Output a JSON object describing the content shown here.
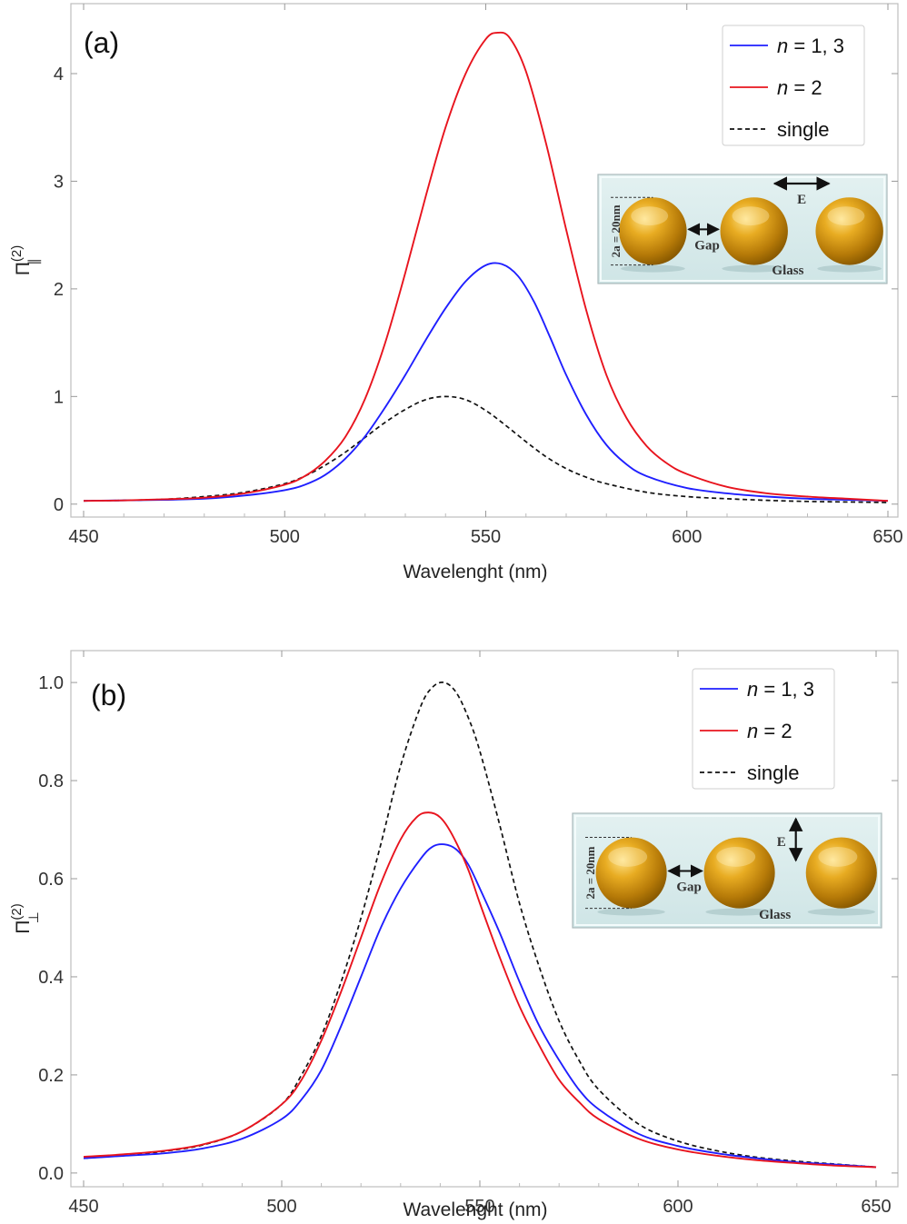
{
  "colors": {
    "series_blue": "#1f1fff",
    "series_red": "#e8141e",
    "series_black": "#111111",
    "frame": "#bdbdbd",
    "inset_bg": "#d9ecec",
    "sphere": "#e0a516"
  },
  "chart_data": [
    {
      "type": "line",
      "panel_label": "(a)",
      "ylabel": "Π",
      "ylabel_sup": "(2)",
      "ylabel_sub": "∥",
      "xlabel": "Wavelenght (nm)",
      "xlim": [
        450,
        650
      ],
      "ylim": [
        -0.12,
        4.65
      ],
      "x_ticks": [
        450,
        500,
        550,
        600,
        650
      ],
      "y_ticks": [
        0,
        1,
        2,
        3,
        4
      ],
      "y_tick_labels": [
        "0",
        "1",
        "2",
        "3",
        "4"
      ],
      "legend_position": "top-right",
      "legend": [
        {
          "label_italic": "n",
          "label_rest": " = 1, 3",
          "style": "solid",
          "color": "#1f1fff"
        },
        {
          "label_italic": "n",
          "label_rest": " = 2",
          "style": "solid",
          "color": "#e8141e"
        },
        {
          "label_italic": "",
          "label_rest": "single",
          "style": "dashed",
          "color": "#111111"
        }
      ],
      "inset": {
        "diameter_label": "2a = 20nm",
        "gap_label": "Gap",
        "field_label": "E",
        "substrate_label": "Glass",
        "field_direction": "horizontal"
      },
      "series": [
        {
          "name": "n = 1, 3",
          "color": "#1f1fff",
          "dash": false,
          "x": [
            450,
            460,
            470,
            480,
            490,
            500,
            505,
            510,
            515,
            520,
            525,
            530,
            535,
            540,
            545,
            550,
            554,
            558,
            562,
            566,
            570,
            575,
            580,
            585,
            590,
            600,
            610,
            620,
            630,
            640,
            650
          ],
          "y": [
            0.03,
            0.035,
            0.04,
            0.05,
            0.08,
            0.13,
            0.18,
            0.27,
            0.42,
            0.63,
            0.9,
            1.2,
            1.52,
            1.82,
            2.07,
            2.22,
            2.23,
            2.12,
            1.88,
            1.55,
            1.2,
            0.83,
            0.55,
            0.37,
            0.26,
            0.15,
            0.1,
            0.07,
            0.05,
            0.04,
            0.03
          ]
        },
        {
          "name": "n = 2",
          "color": "#e8141e",
          "dash": false,
          "x": [
            450,
            460,
            470,
            480,
            490,
            500,
            505,
            510,
            515,
            520,
            525,
            530,
            535,
            540,
            545,
            550,
            553,
            556,
            560,
            565,
            570,
            575,
            580,
            585,
            590,
            595,
            600,
            610,
            620,
            630,
            640,
            650
          ],
          "y": [
            0.03,
            0.035,
            0.045,
            0.06,
            0.1,
            0.18,
            0.26,
            0.4,
            0.62,
            0.98,
            1.5,
            2.15,
            2.85,
            3.5,
            4.0,
            4.32,
            4.38,
            4.33,
            4.02,
            3.35,
            2.55,
            1.8,
            1.2,
            0.8,
            0.54,
            0.38,
            0.28,
            0.16,
            0.1,
            0.07,
            0.05,
            0.03
          ]
        },
        {
          "name": "single",
          "color": "#111111",
          "dash": true,
          "x": [
            450,
            460,
            470,
            480,
            490,
            500,
            505,
            510,
            515,
            520,
            525,
            530,
            535,
            540,
            545,
            550,
            555,
            560,
            565,
            570,
            575,
            580,
            590,
            600,
            610,
            620,
            630,
            640,
            650
          ],
          "y": [
            0.03,
            0.035,
            0.045,
            0.07,
            0.11,
            0.19,
            0.26,
            0.36,
            0.48,
            0.62,
            0.76,
            0.88,
            0.97,
            1.0,
            0.97,
            0.87,
            0.73,
            0.58,
            0.44,
            0.33,
            0.25,
            0.19,
            0.11,
            0.07,
            0.05,
            0.035,
            0.025,
            0.02,
            0.015
          ]
        }
      ]
    },
    {
      "type": "line",
      "panel_label": "(b)",
      "ylabel": "Π",
      "ylabel_sup": "(2)",
      "ylabel_sub": "⊥",
      "xlabel": "Wavelenght (nm)",
      "xlim": [
        450,
        650
      ],
      "ylim": [
        -0.028,
        1.065
      ],
      "x_ticks": [
        450,
        500,
        550,
        600,
        650
      ],
      "y_ticks": [
        0,
        0.2,
        0.4,
        0.6,
        0.8,
        1.0
      ],
      "y_tick_labels": [
        "0.0",
        "0.2",
        "0.4",
        "0.6",
        "0.8",
        "1.0"
      ],
      "legend_position": "top-right",
      "legend": [
        {
          "label_italic": "n",
          "label_rest": " = 1, 3",
          "style": "solid",
          "color": "#1f1fff"
        },
        {
          "label_italic": "n",
          "label_rest": " = 2",
          "style": "solid",
          "color": "#e8141e"
        },
        {
          "label_italic": "",
          "label_rest": "single",
          "style": "dashed",
          "color": "#111111"
        }
      ],
      "inset": {
        "diameter_label": "2a = 20nm",
        "gap_label": "Gap",
        "field_label": "E",
        "substrate_label": "Glass",
        "field_direction": "vertical"
      },
      "series": [
        {
          "name": "n = 1, 3",
          "color": "#1f1fff",
          "dash": false,
          "x": [
            450,
            460,
            470,
            480,
            490,
            500,
            505,
            510,
            515,
            520,
            525,
            530,
            535,
            538,
            541,
            544,
            547,
            550,
            555,
            560,
            565,
            570,
            575,
            580,
            590,
            600,
            610,
            620,
            630,
            640,
            650
          ],
          "y": [
            0.03,
            0.035,
            0.04,
            0.05,
            0.07,
            0.11,
            0.15,
            0.21,
            0.3,
            0.4,
            0.5,
            0.58,
            0.64,
            0.665,
            0.67,
            0.66,
            0.63,
            0.58,
            0.49,
            0.39,
            0.3,
            0.23,
            0.17,
            0.13,
            0.08,
            0.055,
            0.04,
            0.03,
            0.022,
            0.017,
            0.012
          ]
        },
        {
          "name": "n = 2",
          "color": "#e8141e",
          "dash": false,
          "x": [
            450,
            460,
            470,
            480,
            490,
            500,
            505,
            510,
            515,
            520,
            525,
            530,
            534,
            537,
            540,
            543,
            547,
            550,
            555,
            560,
            565,
            570,
            575,
            580,
            590,
            600,
            610,
            620,
            630,
            640,
            650
          ],
          "y": [
            0.033,
            0.038,
            0.045,
            0.058,
            0.085,
            0.14,
            0.19,
            0.27,
            0.37,
            0.48,
            0.59,
            0.68,
            0.725,
            0.735,
            0.725,
            0.69,
            0.62,
            0.55,
            0.44,
            0.34,
            0.26,
            0.19,
            0.145,
            0.11,
            0.07,
            0.048,
            0.035,
            0.026,
            0.02,
            0.015,
            0.012
          ]
        },
        {
          "name": "single",
          "color": "#111111",
          "dash": true,
          "x": [
            450,
            460,
            470,
            480,
            490,
            500,
            505,
            510,
            515,
            520,
            525,
            530,
            535,
            538,
            541,
            544,
            547,
            550,
            555,
            560,
            565,
            570,
            575,
            580,
            590,
            600,
            610,
            620,
            630,
            640,
            650
          ],
          "y": [
            0.03,
            0.036,
            0.044,
            0.057,
            0.085,
            0.14,
            0.2,
            0.28,
            0.39,
            0.52,
            0.67,
            0.83,
            0.95,
            0.99,
            1.0,
            0.98,
            0.93,
            0.86,
            0.71,
            0.55,
            0.42,
            0.31,
            0.23,
            0.17,
            0.1,
            0.065,
            0.045,
            0.032,
            0.024,
            0.018,
            0.012
          ]
        }
      ]
    }
  ]
}
